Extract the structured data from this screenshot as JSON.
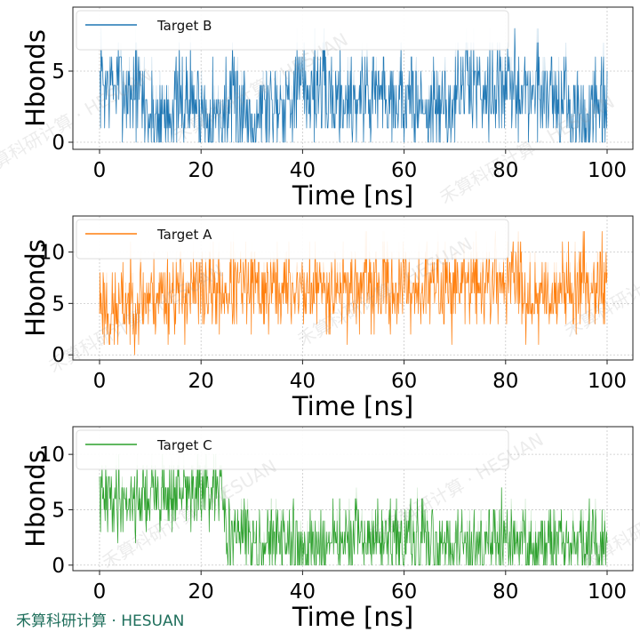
{
  "brand": {
    "watermark_text": "禾算科研计算 · HESUAN",
    "label": "禾算科研计算 · HESUAN"
  },
  "chart_data": [
    {
      "type": "line",
      "title": "",
      "xlabel": "Time [ns]",
      "ylabel": "Hbonds",
      "xlim": [
        0,
        100
      ],
      "ylim": [
        -0.5,
        9.5
      ],
      "xticks": [
        0,
        20,
        40,
        60,
        80,
        100
      ],
      "yticks": [
        0,
        5
      ],
      "grid": true,
      "legend": "top-left",
      "series": [
        {
          "name": "Target B",
          "color": "#1f77b4",
          "seed": 7,
          "spread": 1.8,
          "lo": 0,
          "hi": 9,
          "x": [
            0,
            4,
            8,
            10,
            14,
            18,
            22,
            26,
            30,
            34,
            38,
            42,
            46,
            50,
            54,
            58,
            62,
            66,
            70,
            72,
            76,
            80,
            84,
            88,
            92,
            95,
            97,
            100
          ],
          "mean": [
            4.2,
            4.0,
            3.4,
            1.6,
            2.2,
            3.0,
            1.8,
            2.4,
            2.0,
            2.6,
            3.4,
            3.8,
            3.2,
            3.0,
            3.6,
            3.4,
            2.6,
            2.2,
            2.6,
            4.2,
            4.0,
            3.8,
            3.4,
            3.6,
            2.6,
            1.2,
            1.6,
            2.2
          ]
        }
      ]
    },
    {
      "type": "line",
      "title": "",
      "xlabel": "Time [ns]",
      "ylabel": "Hbonds",
      "xlim": [
        0,
        100
      ],
      "ylim": [
        -0.5,
        13.5
      ],
      "xticks": [
        0,
        20,
        40,
        60,
        80,
        100
      ],
      "yticks": [
        0,
        5,
        10
      ],
      "grid": true,
      "legend": "top-left",
      "series": [
        {
          "name": "Target A",
          "color": "#ff7f0e",
          "seed": 23,
          "spread": 2.1,
          "lo": 0,
          "hi": 12,
          "x": [
            0,
            2,
            5,
            10,
            15,
            20,
            25,
            30,
            40,
            50,
            60,
            70,
            75,
            80,
            83,
            84,
            88,
            92,
            96,
            100
          ],
          "mean": [
            5.5,
            3.8,
            5.0,
            5.6,
            6.2,
            6.0,
            6.2,
            6.4,
            6.5,
            6.6,
            6.5,
            6.8,
            7.0,
            7.3,
            7.4,
            5.8,
            5.9,
            6.4,
            7.0,
            7.2
          ]
        }
      ]
    },
    {
      "type": "line",
      "title": "",
      "xlabel": "Time [ns]",
      "ylabel": "Hbonds",
      "xlim": [
        0,
        100
      ],
      "ylim": [
        -0.5,
        12.5
      ],
      "xticks": [
        0,
        20,
        40,
        60,
        80,
        100
      ],
      "yticks": [
        0,
        5,
        10
      ],
      "grid": true,
      "legend": "top-left",
      "series": [
        {
          "name": "Target C",
          "color": "#2ca02c",
          "seed": 41,
          "spread": 1.7,
          "lo": 0,
          "hi": 10,
          "x": [
            0,
            5,
            10,
            15,
            20,
            24,
            25,
            28,
            32,
            36,
            40,
            44,
            48,
            52,
            56,
            60,
            64,
            68,
            72,
            76,
            80,
            84,
            88,
            92,
            96,
            100
          ],
          "mean": [
            5.8,
            6.0,
            6.2,
            6.4,
            6.6,
            6.5,
            3.2,
            2.6,
            2.2,
            2.0,
            1.6,
            1.8,
            2.2,
            2.4,
            2.4,
            2.0,
            2.0,
            2.2,
            1.8,
            2.0,
            1.8,
            1.8,
            1.6,
            1.8,
            2.0,
            1.8
          ]
        }
      ]
    }
  ]
}
